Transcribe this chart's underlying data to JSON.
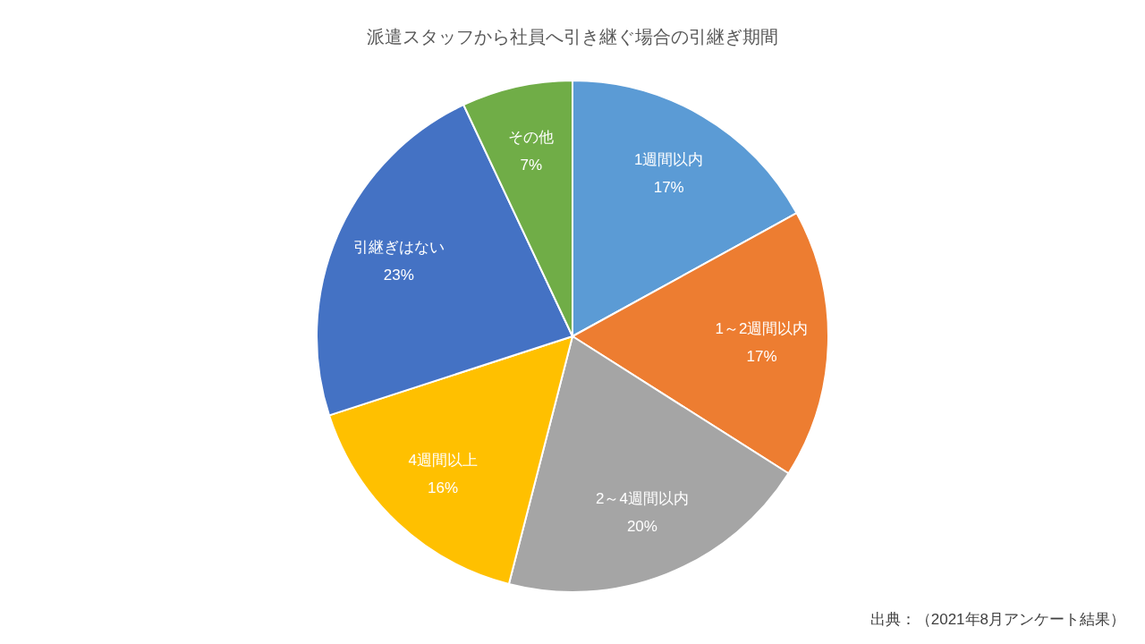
{
  "chart_data": {
    "type": "pie",
    "title": "派遣スタッフから社員へ引き継ぐ場合の引継ぎ期間",
    "categories": [
      "1週間以内",
      "1～2週間以内",
      "2～4週間以内",
      "4週間以上",
      "引継ぎはない",
      "その他"
    ],
    "values": [
      17,
      17,
      20,
      16,
      23,
      7
    ],
    "value_labels": [
      "17%",
      "17%",
      "20%",
      "16%",
      "23%",
      "7%"
    ],
    "colors": [
      "#5b9bd5",
      "#ed7d31",
      "#a5a5a5",
      "#ffc000",
      "#4472c4",
      "#70ad47"
    ],
    "annotations": [
      "出典：（2021年8月アンケート結果）"
    ]
  }
}
